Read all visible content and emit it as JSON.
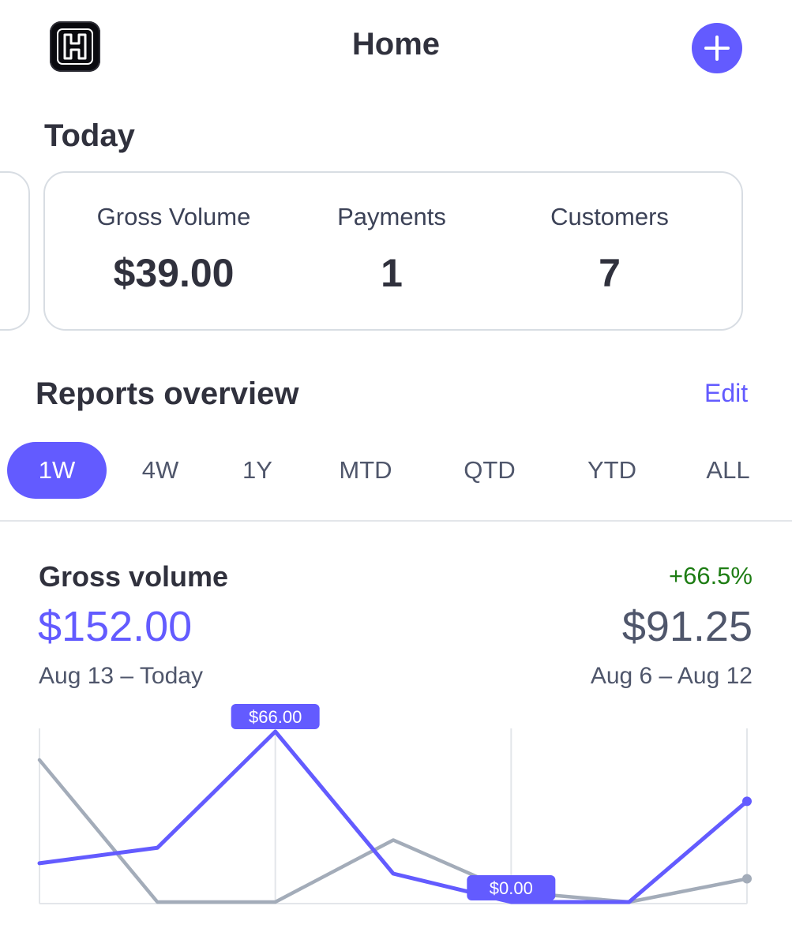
{
  "header": {
    "title": "Home",
    "logo_icon": "h-logo-icon",
    "add_icon": "plus-icon"
  },
  "today": {
    "title": "Today",
    "stats": [
      {
        "label": "Gross Volume",
        "value": "$39.00"
      },
      {
        "label": "Payments",
        "value": "1"
      },
      {
        "label": "Customers",
        "value": "7"
      }
    ]
  },
  "reports": {
    "title": "Reports overview",
    "edit_label": "Edit",
    "ranges": [
      "1W",
      "4W",
      "1Y",
      "MTD",
      "QTD",
      "YTD",
      "ALL"
    ],
    "active_range": "1W"
  },
  "gross_volume": {
    "title": "Gross volume",
    "change": "+66.5%",
    "current_value": "$152.00",
    "current_range": "Aug 13 – Today",
    "previous_value": "$91.25",
    "previous_range": "Aug 6 – Aug 12"
  },
  "colors": {
    "accent": "#635bff",
    "positive": "#1e7d14",
    "comparison_line": "#a3acb9"
  },
  "chart_data": {
    "type": "line",
    "ylim": [
      0,
      66
    ],
    "series": [
      {
        "values": [
          15,
          21,
          66,
          11,
          0,
          0,
          39
        ]
      },
      {
        "values": [
          55,
          0,
          0,
          24,
          4,
          0,
          9
        ]
      }
    ],
    "annotations": [
      {
        "text": "$66.00",
        "series": 0,
        "point": 2
      },
      {
        "text": "$0.00",
        "series": 0,
        "point": 4
      }
    ]
  }
}
